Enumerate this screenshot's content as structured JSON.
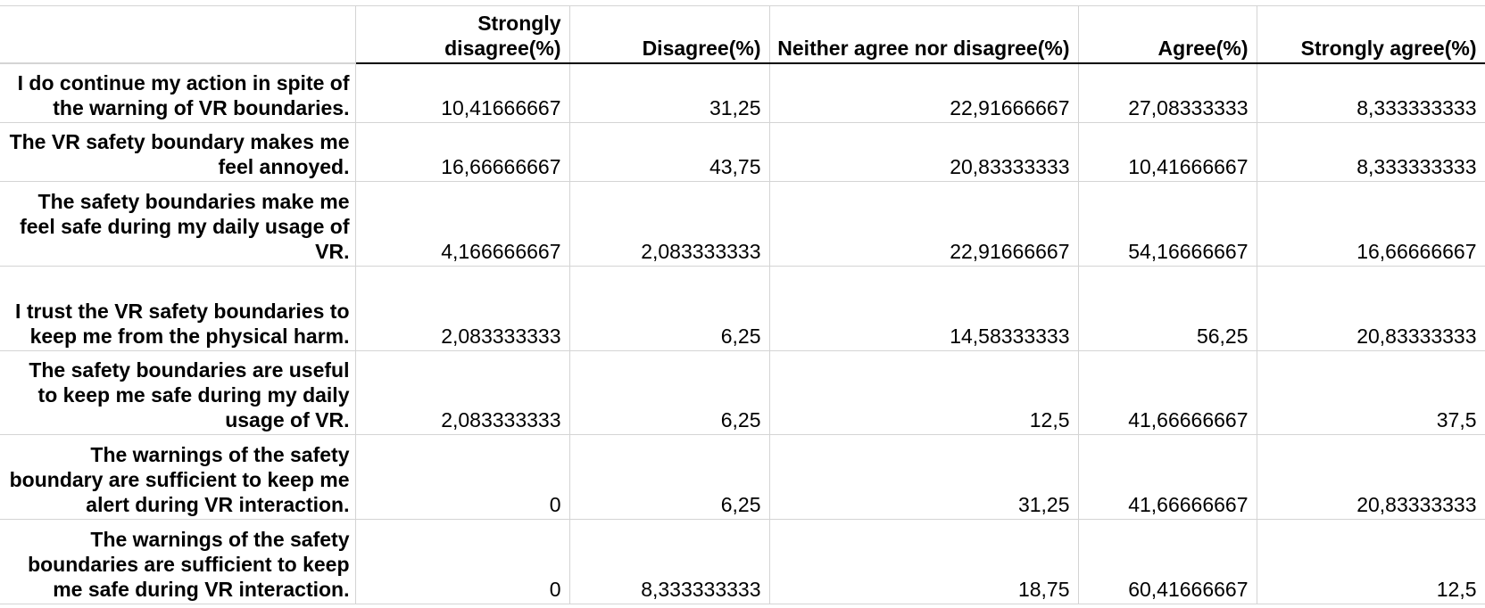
{
  "table": {
    "columns": [
      "",
      "Strongly disagree(%)",
      "Disagree(%)",
      "Neither agree nor disagree(%)",
      "Agree(%)",
      "Strongly agree(%)"
    ],
    "rows": [
      {
        "label": "I do continue my action in spite of the warning of VR boundaries.",
        "values": [
          "10,41666667",
          "31,25",
          "22,91666667",
          "27,08333333",
          "8,333333333"
        ]
      },
      {
        "label": "The VR safety boundary makes me feel annoyed.",
        "values": [
          "16,66666667",
          "43,75",
          "20,83333333",
          "10,41666667",
          "8,333333333"
        ]
      },
      {
        "label": "The safety boundaries make me feel safe during my daily usage of VR.",
        "values": [
          "4,166666667",
          "2,083333333",
          "22,91666667",
          "54,16666667",
          "16,66666667"
        ]
      },
      {
        "label": "I trust the VR safety boundaries to keep me from the physical harm.",
        "values": [
          "2,083333333",
          "6,25",
          "14,58333333",
          "56,25",
          "20,83333333"
        ]
      },
      {
        "label": "The safety boundaries are useful to keep me safe during my daily usage of VR.",
        "values": [
          "2,083333333",
          "6,25",
          "12,5",
          "41,66666667",
          "37,5"
        ]
      },
      {
        "label": "The warnings of the safety boundary are sufficient to keep me alert during VR interaction.",
        "values": [
          "0",
          "6,25",
          "31,25",
          "41,66666667",
          "20,83333333"
        ]
      },
      {
        "label": "The warnings of the safety boundaries are sufficient to keep me safe during VR interaction.",
        "values": [
          "0",
          "8,333333333",
          "18,75",
          "60,41666667",
          "12,5"
        ]
      }
    ]
  }
}
